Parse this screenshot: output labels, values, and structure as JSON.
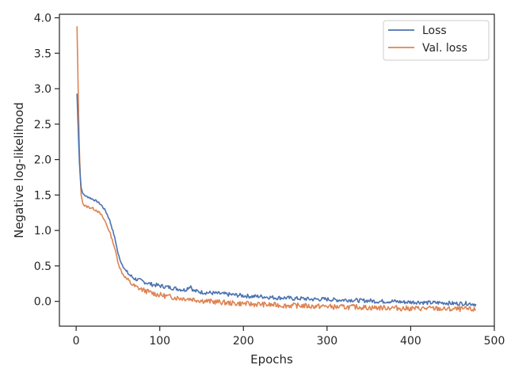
{
  "chart_data": {
    "type": "line",
    "title": "",
    "xlabel": "Epochs",
    "ylabel": "Negative log-likelihood",
    "xlim": [
      -20,
      500
    ],
    "ylim": [
      -0.35,
      4.05
    ],
    "xticks": [
      0,
      100,
      200,
      300,
      400,
      500
    ],
    "yticks": [
      0.0,
      0.5,
      1.0,
      1.5,
      2.0,
      2.5,
      3.0,
      3.5,
      4.0
    ],
    "xtick_labels": [
      "0",
      "100",
      "200",
      "300",
      "400",
      "500"
    ],
    "ytick_labels": [
      "0.0",
      "0.5",
      "1.0",
      "1.5",
      "2.0",
      "2.5",
      "3.0",
      "3.5",
      "4.0"
    ],
    "grid": false,
    "legend_position": "top-right",
    "series": [
      {
        "name": "Loss",
        "color": "#4c72b0",
        "x": [
          1,
          2,
          3,
          4,
          5,
          6,
          8,
          10,
          12,
          15,
          18,
          20,
          25,
          30,
          35,
          40,
          45,
          48,
          50,
          52,
          55,
          60,
          65,
          70,
          80,
          90,
          100,
          110,
          120,
          130,
          137,
          140,
          150,
          160,
          170,
          180,
          190,
          200,
          210,
          220,
          230,
          240,
          250,
          260,
          270,
          280,
          290,
          300,
          310,
          320,
          330,
          340,
          350,
          360,
          370,
          380,
          390,
          400,
          410,
          420,
          430,
          440,
          450,
          460,
          470,
          478
        ],
        "y": [
          2.93,
          2.6,
          2.25,
          1.95,
          1.75,
          1.6,
          1.52,
          1.5,
          1.48,
          1.47,
          1.45,
          1.44,
          1.41,
          1.36,
          1.28,
          1.15,
          0.95,
          0.8,
          0.68,
          0.6,
          0.52,
          0.42,
          0.36,
          0.32,
          0.28,
          0.24,
          0.22,
          0.2,
          0.18,
          0.16,
          0.22,
          0.15,
          0.13,
          0.12,
          0.11,
          0.1,
          0.09,
          0.08,
          0.07,
          0.07,
          0.06,
          0.05,
          0.05,
          0.04,
          0.04,
          0.03,
          0.03,
          0.03,
          0.02,
          0.02,
          0.02,
          0.01,
          0.01,
          0.0,
          0.0,
          0.0,
          -0.01,
          -0.01,
          -0.01,
          -0.02,
          -0.02,
          -0.02,
          -0.03,
          -0.03,
          -0.03,
          -0.04
        ]
      },
      {
        "name": "Val. loss",
        "color": "#dd8452",
        "x": [
          1,
          2,
          3,
          4,
          5,
          6,
          8,
          10,
          12,
          15,
          18,
          20,
          25,
          30,
          35,
          40,
          45,
          48,
          50,
          52,
          55,
          60,
          65,
          70,
          80,
          90,
          100,
          110,
          120,
          130,
          140,
          150,
          160,
          170,
          180,
          190,
          200,
          210,
          220,
          230,
          240,
          250,
          260,
          270,
          280,
          290,
          300,
          310,
          320,
          330,
          340,
          350,
          360,
          370,
          380,
          390,
          400,
          410,
          420,
          430,
          440,
          450,
          460,
          470,
          478
        ],
        "y": [
          3.88,
          3.3,
          2.6,
          2.1,
          1.75,
          1.5,
          1.38,
          1.35,
          1.34,
          1.33,
          1.32,
          1.31,
          1.28,
          1.22,
          1.12,
          0.98,
          0.8,
          0.66,
          0.56,
          0.48,
          0.4,
          0.32,
          0.26,
          0.21,
          0.16,
          0.12,
          0.09,
          0.07,
          0.05,
          0.04,
          0.03,
          0.01,
          0.0,
          -0.01,
          -0.02,
          -0.03,
          -0.03,
          -0.04,
          -0.04,
          -0.05,
          -0.05,
          -0.06,
          -0.06,
          -0.06,
          -0.07,
          -0.07,
          -0.07,
          -0.08,
          -0.08,
          -0.08,
          -0.08,
          -0.09,
          -0.09,
          -0.09,
          -0.09,
          -0.1,
          -0.1,
          -0.1,
          -0.1,
          -0.1,
          -0.11,
          -0.11,
          -0.11,
          -0.11,
          -0.12
        ]
      }
    ]
  }
}
